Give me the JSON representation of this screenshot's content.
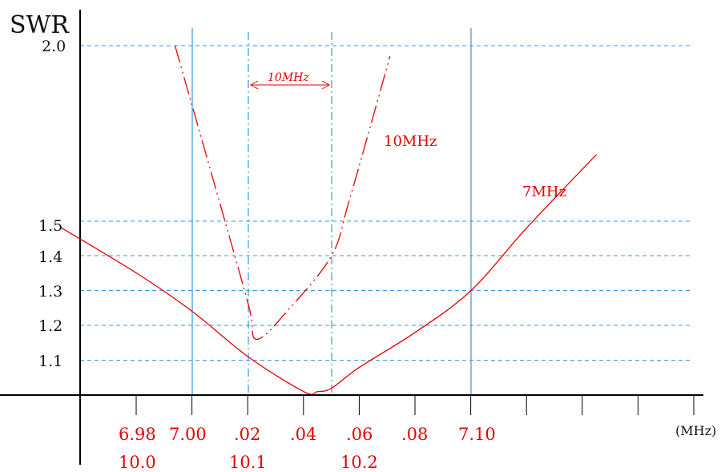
{
  "chart_data": {
    "type": "line",
    "ylabel": "SWR",
    "xunit": "(MHz)",
    "ylim": [
      1.0,
      2.0
    ],
    "y_ticks": [
      "1.1",
      "1.2",
      "1.3",
      "1.4",
      "1.5",
      "2.0"
    ],
    "x_ticks_7mhz": [
      "6.98",
      "7.00",
      ".02",
      ".04",
      ".06",
      ".08",
      "7.10"
    ],
    "x_ticks_10mhz": [
      "10.0",
      "10.1",
      "10.2"
    ],
    "band_label": "10MHz",
    "series": [
      {
        "name": "7MHz",
        "color": "#e60000",
        "line": "solid",
        "x": [
          6.953,
          6.98,
          7.0,
          7.02,
          7.04,
          7.045,
          7.05,
          7.06,
          7.08,
          7.1,
          7.12,
          7.145
        ],
        "y": [
          1.48,
          1.35,
          1.24,
          1.11,
          1.01,
          1.01,
          1.02,
          1.08,
          1.18,
          1.3,
          1.48,
          1.69
        ]
      },
      {
        "name": "10MHz",
        "color": "#e60000",
        "line": "dash-dot",
        "x": [
          10.012,
          10.06,
          10.1,
          10.11,
          10.15,
          10.2,
          10.22,
          10.25,
          10.27
        ],
        "y": [
          2.0,
          1.6,
          1.26,
          1.16,
          1.25,
          1.4,
          1.55,
          1.8,
          1.97
        ]
      }
    ]
  }
}
